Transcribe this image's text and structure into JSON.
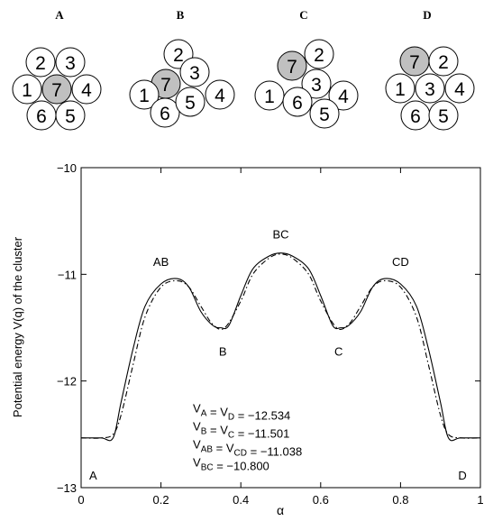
{
  "clusters": [
    {
      "label": "A",
      "disks": [
        {
          "n": "2"
        },
        {
          "n": "3"
        },
        {
          "n": "1"
        },
        {
          "n": "7",
          "highlight": true
        },
        {
          "n": "4"
        },
        {
          "n": "6"
        },
        {
          "n": "5"
        }
      ]
    },
    {
      "label": "B",
      "disks": [
        {
          "n": "2"
        },
        {
          "n": "7",
          "highlight": true
        },
        {
          "n": "3"
        },
        {
          "n": "1"
        },
        {
          "n": "4"
        },
        {
          "n": "6"
        },
        {
          "n": "5"
        }
      ]
    },
    {
      "label": "C",
      "disks": [
        {
          "n": "2"
        },
        {
          "n": "7",
          "highlight": true
        },
        {
          "n": "3"
        },
        {
          "n": "1"
        },
        {
          "n": "4"
        },
        {
          "n": "6"
        },
        {
          "n": "5"
        }
      ]
    },
    {
      "label": "D",
      "disks": [
        {
          "n": "7",
          "highlight": true
        },
        {
          "n": "2"
        },
        {
          "n": "1"
        },
        {
          "n": "3"
        },
        {
          "n": "4"
        },
        {
          "n": "6"
        },
        {
          "n": "5"
        }
      ]
    }
  ],
  "colors": {
    "disk_fill": "#ffffff",
    "disk_highlight": "#c0c0c0",
    "stroke": "#000000"
  },
  "chart_data": {
    "type": "line",
    "xlabel": "α",
    "ylabel": "Potential energy V(q) of the cluster",
    "xlim": [
      0,
      1
    ],
    "ylim": [
      -13,
      -10
    ],
    "xticks": [
      0,
      0.2,
      0.4,
      0.6,
      0.8,
      1
    ],
    "yticks": [
      -13,
      -12,
      -11,
      -10
    ],
    "grid": false,
    "series": [
      {
        "style": "solid",
        "x": [
          0.0,
          0.05,
          0.08,
          0.1,
          0.13,
          0.16,
          0.2,
          0.24,
          0.27,
          0.3,
          0.33,
          0.35,
          0.37,
          0.4,
          0.43,
          0.47,
          0.5,
          0.53,
          0.57,
          0.6,
          0.63,
          0.65,
          0.67,
          0.7,
          0.73,
          0.76,
          0.8,
          0.84,
          0.87,
          0.9,
          0.92,
          0.95,
          1.0
        ],
        "y": [
          -12.534,
          -12.534,
          -12.534,
          -12.2,
          -11.7,
          -11.3,
          -11.09,
          -11.04,
          -11.12,
          -11.35,
          -11.48,
          -11.501,
          -11.48,
          -11.2,
          -10.95,
          -10.83,
          -10.8,
          -10.83,
          -10.95,
          -11.2,
          -11.48,
          -11.501,
          -11.48,
          -11.35,
          -11.12,
          -11.04,
          -11.09,
          -11.3,
          -11.7,
          -12.2,
          -12.534,
          -12.534,
          -12.534
        ]
      },
      {
        "style": "dashdot",
        "x": [
          0.0,
          0.05,
          0.08,
          0.1,
          0.13,
          0.16,
          0.2,
          0.24,
          0.27,
          0.3,
          0.33,
          0.36,
          0.4,
          0.43,
          0.47,
          0.5,
          0.53,
          0.57,
          0.6,
          0.64,
          0.67,
          0.7,
          0.73,
          0.76,
          0.8,
          0.84,
          0.87,
          0.9,
          0.92,
          0.95,
          1.0
        ],
        "y": [
          -12.534,
          -12.534,
          -12.5,
          -12.32,
          -11.85,
          -11.4,
          -11.12,
          -11.06,
          -11.12,
          -11.3,
          -11.47,
          -11.501,
          -11.25,
          -11.0,
          -10.85,
          -10.81,
          -10.85,
          -11.0,
          -11.25,
          -11.501,
          -11.47,
          -11.3,
          -11.12,
          -11.06,
          -11.12,
          -11.4,
          -11.85,
          -12.32,
          -12.5,
          -12.534,
          -12.534
        ]
      }
    ],
    "point_labels": [
      {
        "text": "A",
        "x": 0.03,
        "y": -12.88
      },
      {
        "text": "AB",
        "x": 0.2,
        "y": -10.88
      },
      {
        "text": "B",
        "x": 0.355,
        "y": -11.72
      },
      {
        "text": "BC",
        "x": 0.5,
        "y": -10.62
      },
      {
        "text": "C",
        "x": 0.645,
        "y": -11.72
      },
      {
        "text": "CD",
        "x": 0.8,
        "y": -10.88
      },
      {
        "text": "D",
        "x": 0.955,
        "y": -12.88
      }
    ],
    "annotations": [
      {
        "text": "V_A = V_D = −12.534",
        "x": 0.28,
        "y": -12.25
      },
      {
        "text": "V_B = V_C = −11.501",
        "x": 0.28,
        "y": -12.42
      },
      {
        "text": "V_AB = V_CD = −11.038",
        "x": 0.28,
        "y": -12.59
      },
      {
        "text": "V_BC = −10.800",
        "x": 0.28,
        "y": -12.76
      }
    ]
  }
}
